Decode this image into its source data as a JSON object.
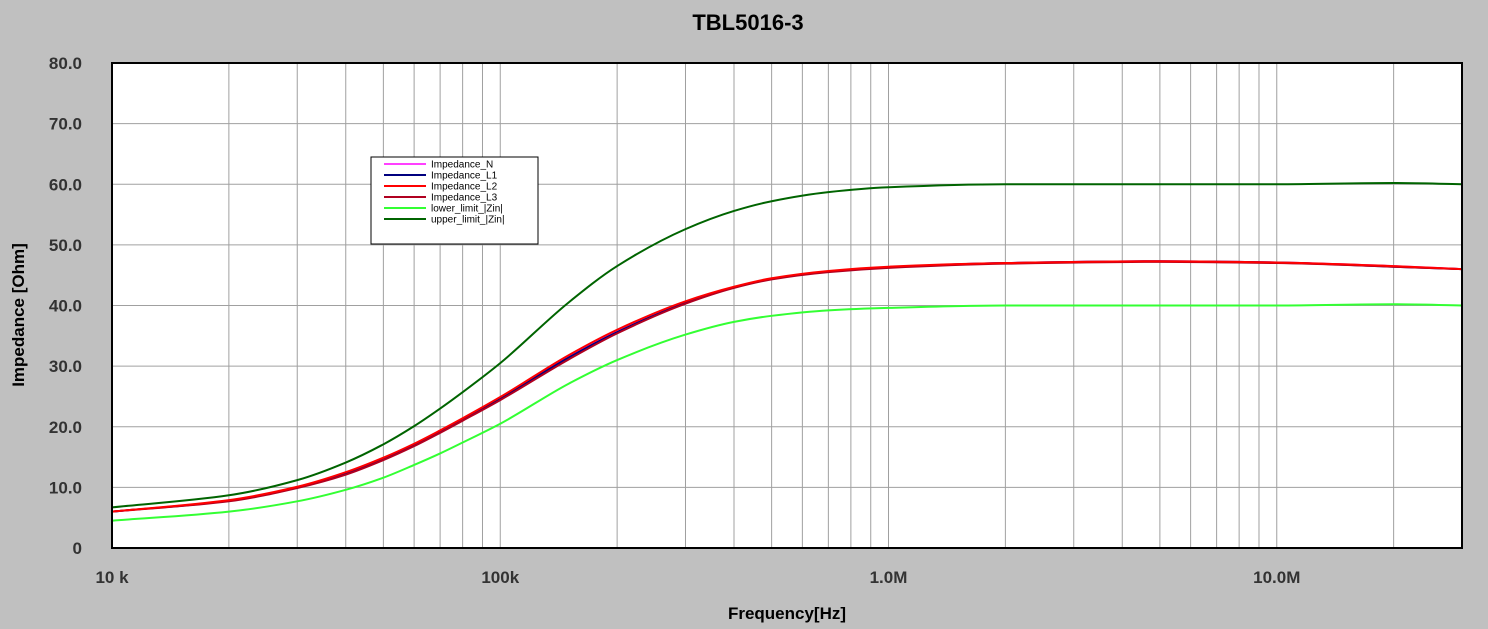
{
  "chart_data": {
    "type": "line",
    "title": "TBL5016-3",
    "xlabel": "Frequency[Hz]",
    "ylabel": "Impedance [Ohm]",
    "x_scale": "log",
    "xlim": [
      10000,
      30000000
    ],
    "ylim": [
      0,
      80
    ],
    "grid": true,
    "legend_position": "upper-left",
    "y_ticks": [
      {
        "value": 0,
        "label": "0"
      },
      {
        "value": 10,
        "label": "10.0"
      },
      {
        "value": 20,
        "label": "20.0"
      },
      {
        "value": 30,
        "label": "30.0"
      },
      {
        "value": 40,
        "label": "40.0"
      },
      {
        "value": 50,
        "label": "50.0"
      },
      {
        "value": 60,
        "label": "60.0"
      },
      {
        "value": 70,
        "label": "70.0"
      },
      {
        "value": 80,
        "label": "80.0"
      }
    ],
    "x_ticks": [
      {
        "value": 10000,
        "label": "10 k"
      },
      {
        "value": 100000,
        "label": "100k"
      },
      {
        "value": 1000000,
        "label": "1.0M"
      },
      {
        "value": 10000000,
        "label": "10.0M"
      }
    ],
    "x": [
      10000,
      20000,
      30000,
      40000,
      50000,
      60000,
      70000,
      80000,
      100000,
      150000,
      200000,
      300000,
      400000,
      500000,
      700000,
      1000000,
      2000000,
      5000000,
      10000000,
      20000000,
      30000000
    ],
    "series": [
      {
        "name": "Impedance_N",
        "color": "#ff40ff",
        "values": [
          6.0,
          7.8,
          10.0,
          12.3,
          14.7,
          17.0,
          19.2,
          21.2,
          24.7,
          31.5,
          35.7,
          40.5,
          43.0,
          44.4,
          45.6,
          46.3,
          47.0,
          47.3,
          47.1,
          46.5,
          46.0
        ]
      },
      {
        "name": "Impedance_L1",
        "color": "#00007f",
        "values": [
          6.0,
          7.8,
          10.0,
          12.3,
          14.7,
          17.0,
          19.2,
          21.2,
          24.6,
          31.4,
          35.6,
          40.4,
          43.0,
          44.4,
          45.6,
          46.3,
          47.0,
          47.3,
          47.1,
          46.4,
          46.0
        ]
      },
      {
        "name": "Impedance_L2",
        "color": "#ff0000",
        "values": [
          6.0,
          7.9,
          10.1,
          12.5,
          14.9,
          17.2,
          19.4,
          21.4,
          24.9,
          31.8,
          36.0,
          40.7,
          43.1,
          44.5,
          45.7,
          46.4,
          47.0,
          47.3,
          47.1,
          46.5,
          46.0
        ]
      },
      {
        "name": "Impedance_L3",
        "color": "#b00020",
        "values": [
          6.0,
          7.7,
          9.9,
          12.1,
          14.5,
          16.8,
          19.0,
          21.0,
          24.4,
          31.1,
          35.4,
          40.3,
          42.9,
          44.3,
          45.5,
          46.2,
          46.9,
          47.2,
          47.0,
          46.4,
          46.0
        ]
      },
      {
        "name": "lower_limit_|Zin|",
        "color": "#33ff33",
        "values": [
          4.5,
          6.0,
          7.7,
          9.6,
          11.6,
          13.7,
          15.6,
          17.4,
          20.5,
          27.1,
          31.0,
          35.2,
          37.3,
          38.3,
          39.2,
          39.6,
          40.0,
          40.0,
          40.0,
          40.2,
          40.0
        ]
      },
      {
        "name": "upper_limit_|Zin|",
        "color": "#006400",
        "values": [
          6.7,
          8.7,
          11.2,
          14.1,
          17.1,
          20.1,
          23.0,
          25.7,
          30.5,
          40.5,
          46.5,
          52.6,
          55.6,
          57.2,
          58.7,
          59.5,
          60.0,
          60.0,
          60.0,
          60.2,
          60.0
        ]
      }
    ]
  }
}
